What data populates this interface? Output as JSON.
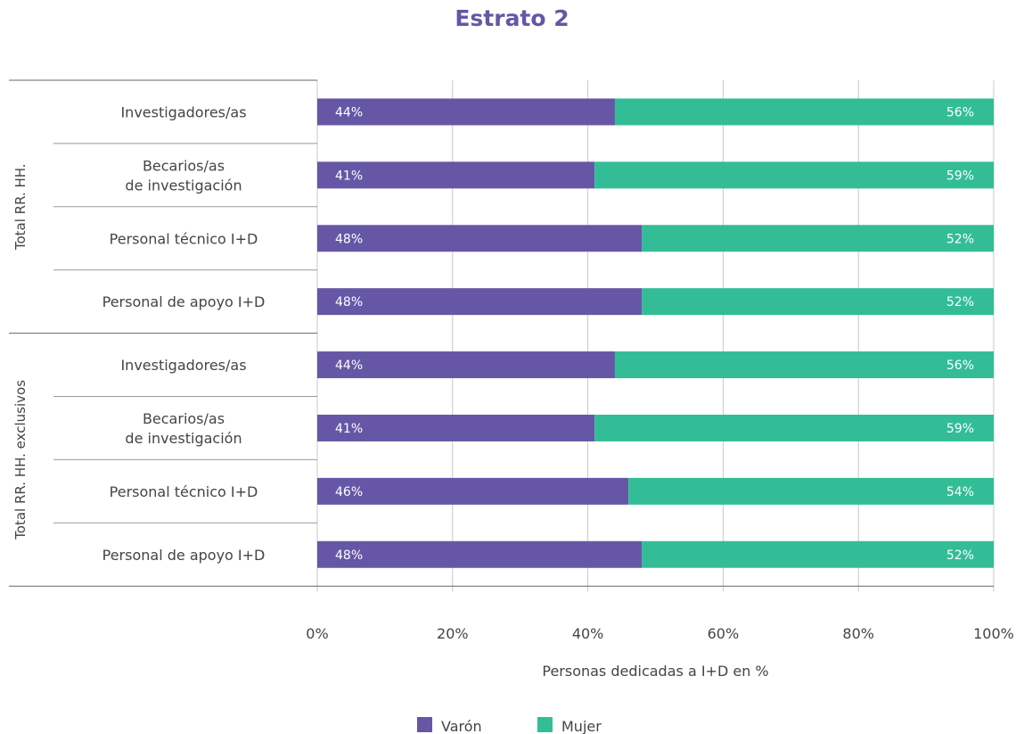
{
  "chart_data": {
    "type": "bar",
    "orientation": "horizontal",
    "stacked": true,
    "title": "Estrato 2",
    "xlabel": "Personas dedicadas a I+D en %",
    "ylabel": "",
    "xlim": [
      0,
      100
    ],
    "x_ticks": [
      "0%",
      "20%",
      "40%",
      "60%",
      "80%",
      "100%"
    ],
    "grid": true,
    "legend_position": "bottom",
    "colors": {
      "title": "#6557a6",
      "varon": "#6557a6",
      "mujer": "#32bd97"
    },
    "groups": [
      {
        "label": "Total RR. HH.",
        "category_indices": [
          0,
          1,
          2,
          3
        ]
      },
      {
        "label": "Total RR. HH. exclusivos",
        "category_indices": [
          4,
          5,
          6,
          7
        ]
      }
    ],
    "categories": [
      [
        "Investigadores/as"
      ],
      [
        "Becarios/as",
        "de investigación"
      ],
      [
        "Personal técnico I+D"
      ],
      [
        "Personal de apoyo I+D"
      ],
      [
        "Investigadores/as"
      ],
      [
        "Becarios/as",
        "de investigación"
      ],
      [
        "Personal técnico I+D"
      ],
      [
        "Personal de apoyo I+D"
      ]
    ],
    "series": [
      {
        "name": "Varón",
        "values": [
          44,
          41,
          48,
          48,
          44,
          41,
          46,
          48
        ],
        "labels": [
          "44%",
          "41%",
          "48%",
          "48%",
          "44%",
          "41%",
          "46%",
          "48%"
        ]
      },
      {
        "name": "Mujer",
        "values": [
          56,
          59,
          52,
          52,
          56,
          59,
          54,
          52
        ],
        "labels": [
          "56%",
          "59%",
          "52%",
          "52%",
          "56%",
          "59%",
          "54%",
          "52%"
        ]
      }
    ]
  }
}
